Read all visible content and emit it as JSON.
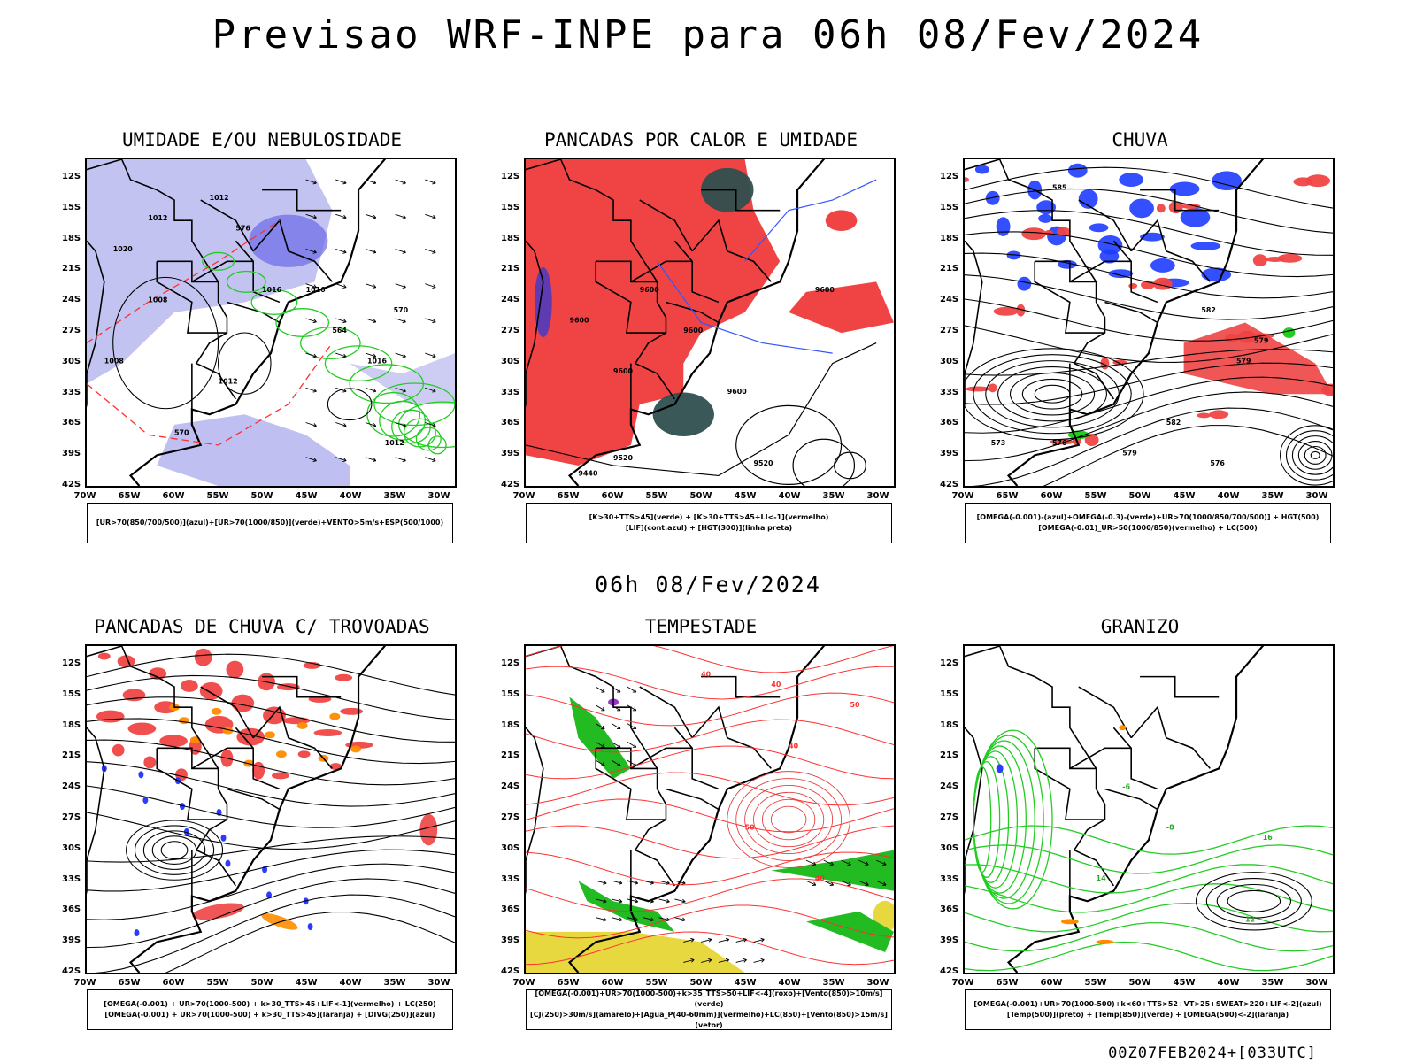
{
  "header": {
    "title": "Previsao WRF-INPE  para 06h 08/Fev/2024",
    "subtitle": "06h 08/Fev/2024",
    "footer": "00Z07FEB2024+[033UTC]"
  },
  "axes": {
    "lat_labels": [
      "12S",
      "15S",
      "18S",
      "21S",
      "24S",
      "27S",
      "30S",
      "33S",
      "36S",
      "39S",
      "42S"
    ],
    "lon_labels": [
      "70W",
      "65W",
      "60W",
      "55W",
      "50W",
      "45W",
      "40W",
      "35W",
      "30W"
    ]
  },
  "colors": {
    "humidity_blue": "#b8b8f0",
    "green_contour": "#22cc22",
    "red_shade": "#f04444",
    "dark_teal": "#2f4f4f",
    "blue_shade": "#1e3cff",
    "orange": "#ff8c00",
    "yellow": "#e8d840",
    "purple": "#9932cc"
  },
  "panels": [
    {
      "id": "umidade",
      "title": "UMIDADE E/OU NEBULOSIDADE",
      "legend": [
        "[UR>70(850/700/500)](azul)+[UR>70(1000/850)](verde)+VENTO>5m/s+ESP(500/1000)"
      ],
      "contour_labels": [
        "1012",
        "1016",
        "1008",
        "1008",
        "1012",
        "1016",
        "1016",
        "1012",
        "576",
        "570",
        "564",
        "570",
        "1020",
        "1012"
      ]
    },
    {
      "id": "pancadas-calor",
      "title": "PANCADAS POR CALOR E UMIDADE",
      "legend": [
        "[K>30+TTS>45](verde) + [K>30+TTS>45+LI<-1](vermelho)",
        "[LIF](cont.azul) + [HGT(300)](linha preta)"
      ],
      "contour_labels": [
        "9600",
        "9600",
        "9600",
        "9600",
        "9520",
        "9520",
        "9440",
        "9600",
        "9600"
      ]
    },
    {
      "id": "chuva",
      "title": "CHUVA",
      "legend": [
        "[OMEGA(-0.001)-(azul)+OMEGA(-0.3)-(verde)+UR>70(1000/850/700/500)] + HGT(500)",
        "[OMEGA(-0.01)_UR>50(1000/850)(vermelho) + LC(500)"
      ],
      "contour_labels": [
        "585",
        "582",
        "579",
        "576",
        "579",
        "573",
        "576",
        "582",
        "579"
      ]
    },
    {
      "id": "pancadas-trovoadas",
      "title": "PANCADAS DE CHUVA C/ TROVOADAS",
      "legend": [
        "[OMEGA(-0.001) + UR>70(1000-500) + k>30_TTS>45+LIF<-1](vermelho) + LC(250)",
        "[OMEGA(-0.001) + UR>70(1000-500) + k>30_TTS>45](laranja) + [DIVG(250)](azul)"
      ],
      "contour_labels": []
    },
    {
      "id": "tempestade",
      "title": "TEMPESTADE",
      "legend": [
        "[OMEGA(-0.001)+UR>70(1000-500)+k>35_TTS>50+LIF<-4](roxo)+[Vento(850)>10m/s](verde)",
        "[CJ(250)>30m/s](amarelo)+[Agua_P(40-60mm)](vermelho)+LC(850)+[Vento(850)>15m/s](vetor)"
      ],
      "contour_labels": [
        "40",
        "40",
        "50",
        "40",
        "40",
        "50"
      ]
    },
    {
      "id": "granizo",
      "title": "GRANIZO",
      "legend": [
        "[OMEGA(-0.001)+UR>70(1000-500)+k<60+TTS>52+VT>25+SWEAT>220+LIF<-2](azul)",
        "[Temp(500)](preto) + [Temp(850)](verde) + [OMEGA(500)<-2](laranja)"
      ],
      "contour_labels": [
        "-6",
        "-8",
        "16",
        "12",
        "14"
      ]
    }
  ]
}
